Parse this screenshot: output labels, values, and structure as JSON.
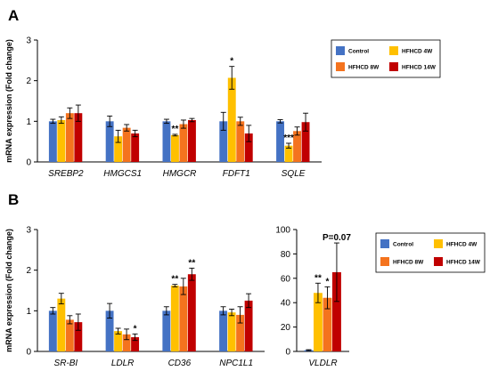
{
  "colors": {
    "Control": "#4472C4",
    "HFHCD 4W": "#FFC000",
    "HFHCD 8W": "#F4731E",
    "HFHCD 14W": "#C00000"
  },
  "chart_data": [
    {
      "panel": "A",
      "type": "bar",
      "ylabel": "mRNA expression (Fold change)",
      "ylim": [
        0,
        3
      ],
      "yticks": [
        0,
        1,
        2,
        3
      ],
      "categories": [
        "SREBP2",
        "HMGCS1",
        "HMGCR",
        "FDFT1",
        "SQLE"
      ],
      "series": [
        {
          "name": "Control",
          "values": [
            1.0,
            1.0,
            1.0,
            1.0,
            1.0
          ],
          "errors": [
            0.05,
            0.13,
            0.05,
            0.22,
            0.04
          ]
        },
        {
          "name": "HFHCD 4W",
          "values": [
            1.03,
            0.63,
            0.66,
            2.07,
            0.4
          ],
          "errors": [
            0.08,
            0.15,
            0.02,
            0.28,
            0.06
          ]
        },
        {
          "name": "HFHCD 8W",
          "values": [
            1.2,
            0.84,
            0.93,
            1.0,
            0.76
          ],
          "errors": [
            0.13,
            0.08,
            0.1,
            0.1,
            0.1
          ]
        },
        {
          "name": "HFHCD 14W",
          "values": [
            1.2,
            0.7,
            1.03,
            0.7,
            0.98
          ],
          "errors": [
            0.2,
            0.08,
            0.04,
            0.2,
            0.22
          ]
        }
      ],
      "annotations": [
        {
          "category": "HMGCR",
          "series": "HFHCD 4W",
          "text": "**"
        },
        {
          "category": "FDFT1",
          "series": "HFHCD 4W",
          "text": "*"
        },
        {
          "category": "SQLE",
          "series": "HFHCD 4W",
          "text": "***"
        }
      ],
      "legend": {
        "position": "top-right",
        "entries": [
          "Control",
          "HFHCD  4W",
          "HFHCD  8W",
          "HFHCD  14W"
        ]
      },
      "grid": false
    },
    {
      "panel": "B",
      "type": "bar",
      "ylabel": "mRNA expression (Fold change)",
      "ylim": [
        0,
        3
      ],
      "yticks": [
        0,
        1,
        2,
        3
      ],
      "categories": [
        "SR-BI",
        "LDLR",
        "CD36",
        "NPC1L1"
      ],
      "series": [
        {
          "name": "Control",
          "values": [
            1.0,
            1.0,
            1.0,
            1.0
          ],
          "errors": [
            0.08,
            0.18,
            0.1,
            0.1
          ]
        },
        {
          "name": "HFHCD 4W",
          "values": [
            1.3,
            0.5,
            1.62,
            0.96
          ],
          "errors": [
            0.13,
            0.07,
            0.03,
            0.08
          ]
        },
        {
          "name": "HFHCD 8W",
          "values": [
            0.78,
            0.42,
            1.6,
            0.9
          ],
          "errors": [
            0.1,
            0.13,
            0.2,
            0.2
          ]
        },
        {
          "name": "HFHCD 14W",
          "values": [
            0.72,
            0.35,
            1.9,
            1.25
          ],
          "errors": [
            0.2,
            0.08,
            0.15,
            0.17
          ]
        }
      ],
      "annotations": [
        {
          "category": "LDLR",
          "series": "HFHCD 14W",
          "text": "*"
        },
        {
          "category": "CD36",
          "series": "HFHCD 4W",
          "text": "**"
        },
        {
          "category": "CD36",
          "series": "HFHCD 14W",
          "text": "**"
        }
      ],
      "grid": false
    },
    {
      "panel": "B",
      "type": "bar",
      "ylim": [
        0,
        100
      ],
      "yticks": [
        0,
        20,
        40,
        60,
        80,
        100
      ],
      "categories": [
        "VLDLR"
      ],
      "series": [
        {
          "name": "Control",
          "values": [
            1.0
          ],
          "errors": [
            0.4
          ]
        },
        {
          "name": "HFHCD 4W",
          "values": [
            48
          ],
          "errors": [
            8
          ]
        },
        {
          "name": "HFHCD 8W",
          "values": [
            44
          ],
          "errors": [
            9
          ]
        },
        {
          "name": "HFHCD 14W",
          "values": [
            65
          ],
          "errors": [
            24
          ]
        }
      ],
      "annotations": [
        {
          "category": "VLDLR",
          "series": "HFHCD 4W",
          "text": "**"
        },
        {
          "category": "VLDLR",
          "series": "HFHCD 8W",
          "text": "*"
        },
        {
          "category": "VLDLR",
          "series": "HFHCD 14W",
          "text": "P=0.07"
        }
      ],
      "legend": {
        "position": "right",
        "entries": [
          "Control",
          "HFHCD  4W",
          "HFHCD  8W",
          "HFHCD  14W"
        ]
      },
      "grid": false
    }
  ]
}
